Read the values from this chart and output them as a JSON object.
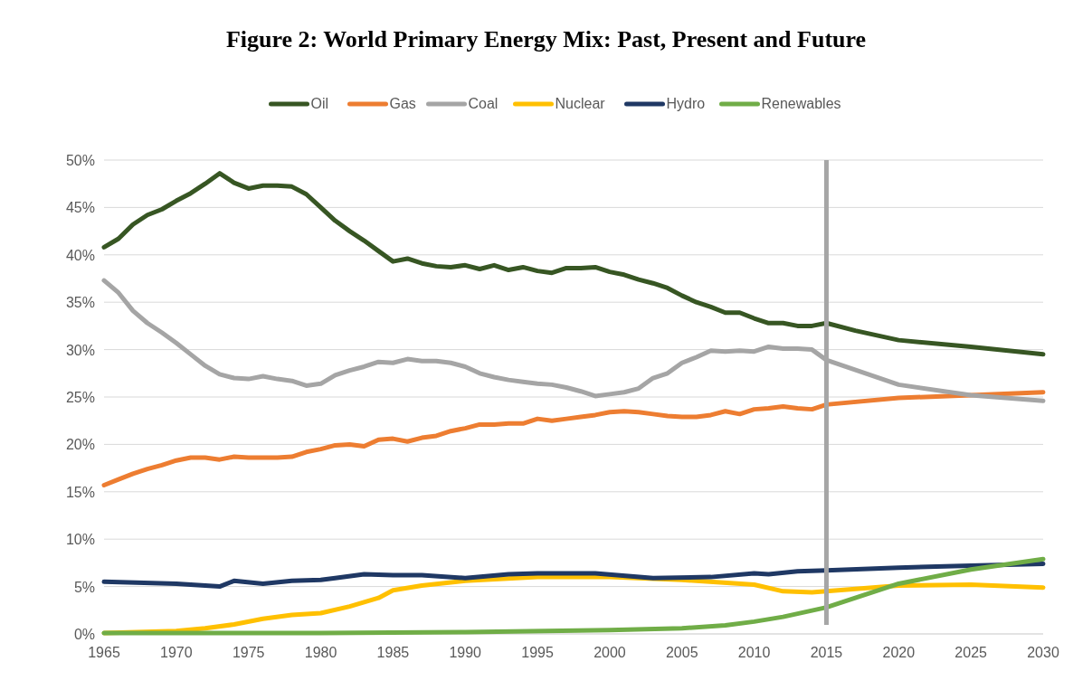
{
  "chart_data": {
    "type": "line",
    "title": "Figure 2: World Primary Energy Mix: Past, Present and Future",
    "legend": "top",
    "grid": "y",
    "line_style": "solid",
    "xlim": [
      1965,
      2030
    ],
    "xticks": [
      1965,
      1970,
      1975,
      1980,
      1985,
      1990,
      1995,
      2000,
      2005,
      2010,
      2015,
      2020,
      2025,
      2030
    ],
    "ylim": [
      0,
      50
    ],
    "yticks": [
      {
        "value": 0,
        "label": "0%"
      },
      {
        "value": 5,
        "label": "5%"
      },
      {
        "value": 10,
        "label": "10%"
      },
      {
        "value": 15,
        "label": "15%"
      },
      {
        "value": 20,
        "label": "20%"
      },
      {
        "value": 25,
        "label": "25%"
      },
      {
        "value": 30,
        "label": "30%"
      },
      {
        "value": 35,
        "label": "35%"
      },
      {
        "value": 40,
        "label": "40%"
      },
      {
        "value": 45,
        "label": "45%"
      },
      {
        "value": 50,
        "label": "50%"
      }
    ],
    "ref_lines": [
      {
        "axis": "x",
        "value": 2015,
        "color": "#a6a6a6"
      }
    ],
    "series": [
      {
        "name": "Oil",
        "color": "#375623",
        "x": [
          1965,
          1966,
          1967,
          1968,
          1969,
          1970,
          1971,
          1972,
          1973,
          1974,
          1975,
          1976,
          1977,
          1978,
          1979,
          1980,
          1981,
          1982,
          1983,
          1984,
          1985,
          1986,
          1987,
          1988,
          1989,
          1990,
          1991,
          1992,
          1993,
          1994,
          1995,
          1996,
          1997,
          1998,
          1999,
          2000,
          2001,
          2002,
          2003,
          2004,
          2005,
          2006,
          2007,
          2008,
          2009,
          2010,
          2011,
          2012,
          2013,
          2014,
          2015,
          2017,
          2020,
          2025,
          2030
        ],
        "values": [
          40.8,
          41.7,
          43.2,
          44.2,
          44.8,
          45.7,
          46.5,
          47.5,
          48.6,
          47.6,
          47.0,
          47.3,
          47.3,
          47.2,
          46.4,
          45.0,
          43.6,
          42.5,
          41.5,
          40.4,
          39.3,
          39.6,
          39.1,
          38.8,
          38.7,
          38.9,
          38.5,
          38.9,
          38.4,
          38.7,
          38.3,
          38.1,
          38.6,
          38.6,
          38.7,
          38.2,
          37.9,
          37.4,
          37.0,
          36.5,
          35.7,
          35.0,
          34.5,
          33.9,
          33.9,
          33.3,
          32.8,
          32.8,
          32.5,
          32.5,
          32.8,
          32.0,
          31.0,
          30.3,
          29.5
        ]
      },
      {
        "name": "Gas",
        "color": "#ed7d31",
        "x": [
          1965,
          1966,
          1967,
          1968,
          1969,
          1970,
          1971,
          1972,
          1973,
          1974,
          1975,
          1976,
          1977,
          1978,
          1979,
          1980,
          1981,
          1982,
          1983,
          1984,
          1985,
          1986,
          1987,
          1988,
          1989,
          1990,
          1991,
          1992,
          1993,
          1994,
          1995,
          1996,
          1997,
          1998,
          1999,
          2000,
          2001,
          2002,
          2003,
          2004,
          2005,
          2006,
          2007,
          2008,
          2009,
          2010,
          2011,
          2012,
          2013,
          2014,
          2015,
          2020,
          2025,
          2030
        ],
        "values": [
          15.7,
          16.3,
          16.9,
          17.4,
          17.8,
          18.3,
          18.6,
          18.6,
          18.4,
          18.7,
          18.6,
          18.6,
          18.6,
          18.7,
          19.2,
          19.5,
          19.9,
          20.0,
          19.8,
          20.5,
          20.6,
          20.3,
          20.7,
          20.9,
          21.4,
          21.7,
          22.1,
          22.1,
          22.2,
          22.2,
          22.7,
          22.5,
          22.7,
          22.9,
          23.1,
          23.4,
          23.5,
          23.4,
          23.2,
          23.0,
          22.9,
          22.9,
          23.1,
          23.5,
          23.2,
          23.7,
          23.8,
          24.0,
          23.8,
          23.7,
          24.2,
          24.9,
          25.2,
          25.5
        ]
      },
      {
        "name": "Coal",
        "color": "#a5a5a5",
        "x": [
          1965,
          1966,
          1967,
          1968,
          1969,
          1970,
          1971,
          1972,
          1973,
          1974,
          1975,
          1976,
          1977,
          1978,
          1979,
          1980,
          1981,
          1982,
          1983,
          1984,
          1985,
          1986,
          1987,
          1988,
          1989,
          1990,
          1991,
          1992,
          1993,
          1994,
          1995,
          1996,
          1997,
          1998,
          1999,
          2000,
          2001,
          2002,
          2003,
          2004,
          2005,
          2006,
          2007,
          2008,
          2009,
          2010,
          2011,
          2012,
          2013,
          2014,
          2015,
          2020,
          2025,
          2030
        ],
        "values": [
          37.3,
          36.0,
          34.1,
          32.8,
          31.8,
          30.7,
          29.5,
          28.3,
          27.4,
          27.0,
          26.9,
          27.2,
          26.9,
          26.7,
          26.2,
          26.4,
          27.3,
          27.8,
          28.2,
          28.7,
          28.6,
          29.0,
          28.8,
          28.8,
          28.6,
          28.2,
          27.5,
          27.1,
          26.8,
          26.6,
          26.4,
          26.3,
          26.0,
          25.6,
          25.1,
          25.3,
          25.5,
          25.9,
          27.0,
          27.5,
          28.6,
          29.2,
          29.9,
          29.8,
          29.9,
          29.8,
          30.3,
          30.1,
          30.1,
          30.0,
          28.9,
          26.3,
          25.2,
          24.6
        ]
      },
      {
        "name": "Nuclear",
        "color": "#ffc000",
        "x": [
          1965,
          1970,
          1972,
          1974,
          1976,
          1978,
          1980,
          1982,
          1984,
          1985,
          1987,
          1990,
          1995,
          2000,
          2005,
          2010,
          2012,
          2014,
          2015,
          2020,
          2025,
          2030
        ],
        "values": [
          0.1,
          0.3,
          0.6,
          1.0,
          1.6,
          2.0,
          2.2,
          2.9,
          3.8,
          4.6,
          5.1,
          5.6,
          6.0,
          6.0,
          5.7,
          5.2,
          4.5,
          4.4,
          4.5,
          5.1,
          5.2,
          4.9
        ]
      },
      {
        "name": "Hydro",
        "color": "#1f3864",
        "x": [
          1965,
          1970,
          1973,
          1974,
          1976,
          1978,
          1980,
          1981,
          1983,
          1985,
          1987,
          1990,
          1993,
          1995,
          1999,
          2003,
          2007,
          2010,
          2011,
          2013,
          2015,
          2020,
          2025,
          2030
        ],
        "values": [
          5.5,
          5.3,
          5.0,
          5.6,
          5.3,
          5.6,
          5.7,
          5.9,
          6.3,
          6.2,
          6.2,
          5.9,
          6.3,
          6.4,
          6.4,
          5.9,
          6.0,
          6.4,
          6.3,
          6.6,
          6.7,
          7.0,
          7.2,
          7.4
        ]
      },
      {
        "name": "Renewables",
        "color": "#70ad47",
        "x": [
          1965,
          1980,
          1990,
          2000,
          2005,
          2008,
          2010,
          2012,
          2015,
          2017,
          2020,
          2025,
          2030
        ],
        "values": [
          0.1,
          0.1,
          0.2,
          0.4,
          0.6,
          0.9,
          1.3,
          1.8,
          2.8,
          3.8,
          5.3,
          6.8,
          7.9
        ]
      }
    ]
  }
}
